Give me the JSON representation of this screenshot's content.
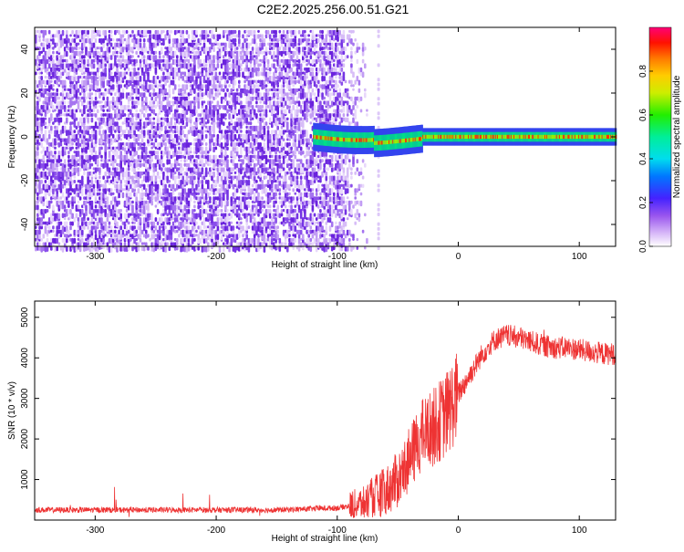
{
  "title": "C2E2.2025.256.00.51.G21",
  "chart_data": [
    {
      "type": "heatmap",
      "xlabel": "Height of straight line (km)",
      "ylabel": "Frequency (Hz)",
      "xlim": [
        -350,
        130
      ],
      "ylim": [
        -50,
        50
      ],
      "xticks": [
        -300,
        -200,
        -100,
        0,
        100
      ],
      "yticks": [
        -40,
        -20,
        0,
        20,
        40
      ],
      "colorbar": {
        "label": "Normalized spectral amplitude",
        "range": [
          0.0,
          1.0
        ],
        "ticks": [
          0.0,
          0.2,
          0.4,
          0.6,
          0.8
        ]
      },
      "features": {
        "noise_region_x": [
          -350,
          -100
        ],
        "signal_start_x": -120,
        "signal_center_frequency": 0,
        "signal_bandwidth": 4
      }
    },
    {
      "type": "line",
      "xlabel": "Height of straight line (km)",
      "ylabel": "SNR (10 * v/v)",
      "xlim": [
        -350,
        130
      ],
      "ylim": [
        0,
        5400
      ],
      "xticks": [
        -300,
        -200,
        -100,
        0,
        100
      ],
      "yticks": [
        1000,
        2000,
        3000,
        4000,
        5000
      ],
      "series": [
        {
          "name": "SNR",
          "color": "#ee3333",
          "x": [
            -350,
            -300,
            -250,
            -200,
            -150,
            -100,
            -80,
            -60,
            -50,
            -40,
            -30,
            -20,
            -10,
            0,
            10,
            20,
            30,
            40,
            50,
            60,
            70,
            80,
            90,
            100,
            110,
            120,
            130
          ],
          "values": [
            250,
            250,
            250,
            250,
            250,
            300,
            400,
            700,
            1000,
            1500,
            2100,
            2300,
            2600,
            3100,
            3600,
            4100,
            4450,
            4550,
            4500,
            4400,
            4300,
            4250,
            4250,
            4200,
            4150,
            4100,
            4100
          ]
        }
      ]
    }
  ]
}
